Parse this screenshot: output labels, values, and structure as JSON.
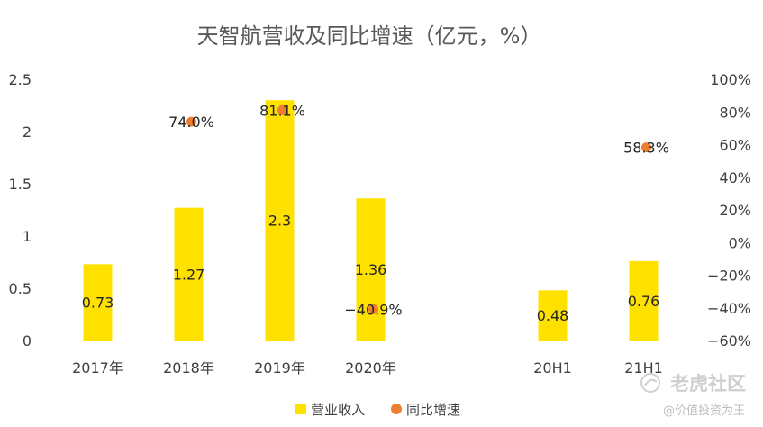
{
  "chart_data": {
    "type": "bar",
    "title": "天智航营收及同比增速（亿元，%）",
    "categories": [
      "2017年",
      "2018年",
      "2019年",
      "2020年",
      "",
      "20H1",
      "21H1"
    ],
    "series": [
      {
        "name": "营业收入",
        "type": "bar",
        "axis": "left",
        "color": "#FFE100",
        "values": [
          0.73,
          1.27,
          2.3,
          1.36,
          null,
          0.48,
          0.76
        ],
        "labels": [
          "0.73",
          "1.27",
          "2.3",
          "1.36",
          "",
          "0.48",
          "0.76"
        ]
      },
      {
        "name": "同比增速",
        "type": "scatter",
        "axis": "right",
        "color": "#ED7D31",
        "values": [
          null,
          74.0,
          81.1,
          -40.9,
          null,
          null,
          58.3
        ],
        "labels": [
          "",
          "74.0%",
          "81.1%",
          "−40.9%",
          "",
          "",
          "58.3%"
        ]
      }
    ],
    "y_left": {
      "min": 0,
      "max": 2.5,
      "ticks": [
        "0",
        "0.5",
        "1",
        "1.5",
        "2",
        "2.5"
      ],
      "tick_values": [
        0,
        0.5,
        1,
        1.5,
        2,
        2.5
      ]
    },
    "y_right": {
      "min": -60,
      "max": 100,
      "ticks": [
        "−60%",
        "−40%",
        "−20%",
        "0%",
        "20%",
        "40%",
        "60%",
        "80%",
        "100%"
      ],
      "tick_values": [
        -60,
        -40,
        -20,
        0,
        20,
        40,
        60,
        80,
        100
      ]
    },
    "grid": false,
    "legend_position": "bottom-center",
    "legend": [
      "营业收入",
      "同比增速"
    ]
  },
  "watermark": {
    "text": "老虎社区",
    "sub": "@价值投资为王",
    "icon": "tiger-logo-icon"
  }
}
